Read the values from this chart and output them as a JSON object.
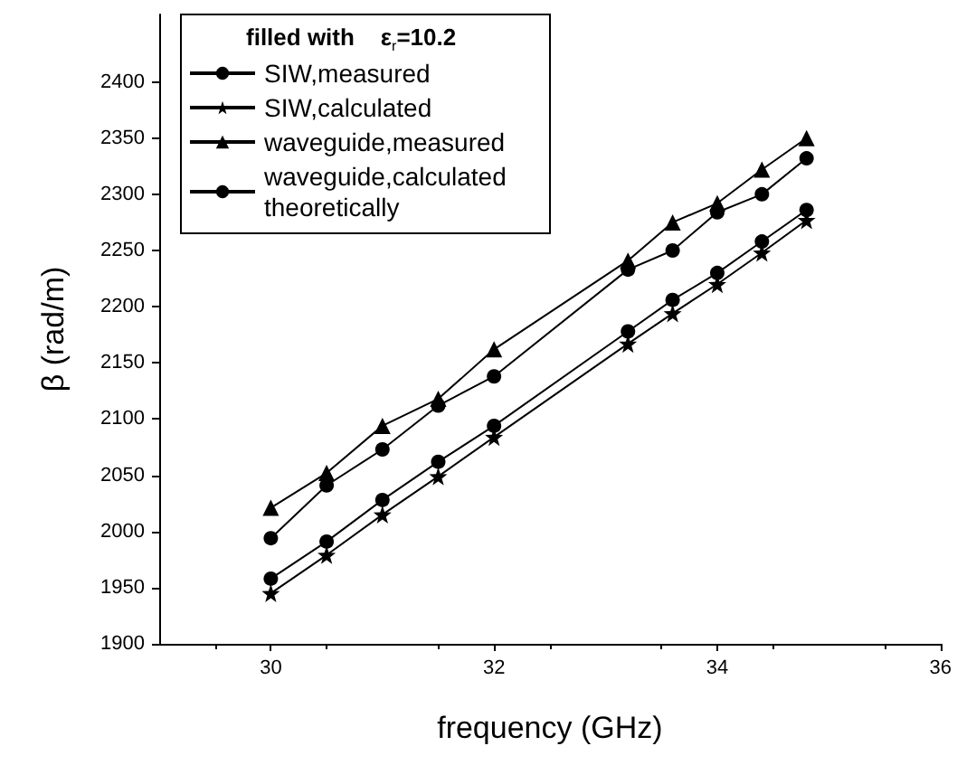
{
  "chart_data": {
    "type": "line",
    "xlabel": "frequency (GHz)",
    "ylabel": "β (rad/m)",
    "legend_title": "filled with    ε$_{r}$=10.2",
    "x": [
      30,
      30.5,
      31,
      31.5,
      32,
      33.2,
      33.6,
      34,
      34.4,
      34.8
    ],
    "series": [
      {
        "name": "SIW,measured",
        "color": "#000000",
        "marker": "circle",
        "values": [
          1994,
          2041,
          2073,
          2112,
          2138,
          2233,
          2250,
          2284,
          2300,
          2332
        ]
      },
      {
        "name": "SIW,calculated",
        "color": "#000000",
        "marker": "star",
        "values": [
          1945,
          1979,
          2015,
          2049,
          2084,
          2167,
          2194,
          2220,
          2248,
          2277
        ]
      },
      {
        "name": "waveguide,measured",
        "color": "#000000",
        "marker": "triangle",
        "values": [
          2021,
          2052,
          2094,
          2118,
          2162,
          2241,
          2275,
          2292,
          2322,
          2350
        ]
      },
      {
        "name": "waveguide,calculated theoretically",
        "color": "#000000",
        "marker": "circle",
        "values": [
          1958,
          1991,
          2028,
          2062,
          2094,
          2178,
          2206,
          2230,
          2258,
          2286
        ]
      }
    ],
    "xlim": [
      29,
      36
    ],
    "xticks": [
      30,
      32,
      34,
      36
    ],
    "ylim": [
      1900,
      2460
    ],
    "yticks": [
      1900,
      1950,
      2000,
      2050,
      2100,
      2150,
      2200,
      2250,
      2300,
      2350,
      2400
    ],
    "grid": false,
    "legend": "top left",
    "line_style": "solid"
  }
}
